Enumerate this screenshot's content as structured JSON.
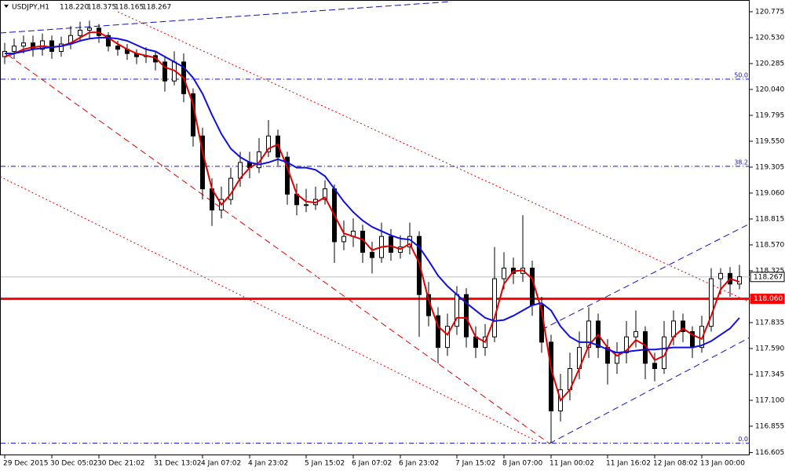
{
  "chart_data": {
    "type": "candlestick",
    "header": {
      "symbol": "USDJPY,H1",
      "quote": [
        "118.220",
        "118.375",
        "118.165",
        "118.267"
      ]
    },
    "categories": [
      "29 Dec 2015",
      null,
      null,
      null,
      null,
      "30 Dec 05:02",
      null,
      null,
      null,
      null,
      "30 Dec 21:02",
      null,
      null,
      null,
      null,
      null,
      "31 Dec 13:02",
      null,
      null,
      null,
      null,
      "4 Jan 07:02",
      null,
      null,
      null,
      null,
      "4 Jan 23:02",
      null,
      null,
      null,
      null,
      null,
      "5 Jan 15:02",
      null,
      null,
      null,
      null,
      "6 Jan 07:02",
      null,
      null,
      null,
      null,
      "6 Jan 23:02",
      null,
      null,
      null,
      null,
      null,
      "7 Jan 15:02",
      null,
      null,
      null,
      null,
      "8 Jan 07:00",
      null,
      null,
      null,
      null,
      "11 Jan 00:02",
      null,
      null,
      null,
      null,
      null,
      "11 Jan 16:02",
      null,
      null,
      null,
      null,
      "12 Jan 08:02",
      null,
      null,
      null,
      null,
      "13 Jan 00:00",
      null,
      null,
      null,
      null
    ],
    "ohlc": [
      [
        120.35,
        120.48,
        120.28,
        120.4
      ],
      [
        120.4,
        120.52,
        120.33,
        120.45
      ],
      [
        120.45,
        120.55,
        120.38,
        120.48
      ],
      [
        120.48,
        120.55,
        120.35,
        120.42
      ],
      [
        120.42,
        120.57,
        120.36,
        120.5
      ],
      [
        120.5,
        120.55,
        120.33,
        120.4
      ],
      [
        120.4,
        120.54,
        120.35,
        120.47
      ],
      [
        120.47,
        120.64,
        120.42,
        120.55
      ],
      [
        120.55,
        120.68,
        120.5,
        120.6
      ],
      [
        120.6,
        120.69,
        120.52,
        120.62
      ],
      [
        120.62,
        120.66,
        120.48,
        120.55
      ],
      [
        120.55,
        120.58,
        120.4,
        120.45
      ],
      [
        120.45,
        120.5,
        120.36,
        120.42
      ],
      [
        120.42,
        120.47,
        120.32,
        120.38
      ],
      [
        120.38,
        120.42,
        120.28,
        120.35
      ],
      [
        120.35,
        120.44,
        120.29,
        120.36
      ],
      [
        120.36,
        120.4,
        120.22,
        120.3
      ],
      [
        120.3,
        120.35,
        120.02,
        120.12
      ],
      [
        120.12,
        120.4,
        120.08,
        120.3
      ],
      [
        120.3,
        120.38,
        119.92,
        120.0
      ],
      [
        120.0,
        120.05,
        119.5,
        119.6
      ],
      [
        119.6,
        119.68,
        119.0,
        119.1
      ],
      [
        119.1,
        119.2,
        118.75,
        118.9
      ],
      [
        118.9,
        119.12,
        118.82,
        119.0
      ],
      [
        119.0,
        119.3,
        118.95,
        119.2
      ],
      [
        119.2,
        119.45,
        119.12,
        119.35
      ],
      [
        119.35,
        119.45,
        119.2,
        119.3
      ],
      [
        119.3,
        119.58,
        119.25,
        119.45
      ],
      [
        119.45,
        119.75,
        119.4,
        119.6
      ],
      [
        119.6,
        119.66,
        119.32,
        119.4
      ],
      [
        119.4,
        119.45,
        118.95,
        119.05
      ],
      [
        119.05,
        119.15,
        118.85,
        118.95
      ],
      [
        118.95,
        119.1,
        118.88,
        118.95
      ],
      [
        118.95,
        119.12,
        118.9,
        119.0
      ],
      [
        119.0,
        119.18,
        118.95,
        119.1
      ],
      [
        119.1,
        119.14,
        118.4,
        118.6
      ],
      [
        118.6,
        118.8,
        118.52,
        118.65
      ],
      [
        118.65,
        118.82,
        118.55,
        118.7
      ],
      [
        118.7,
        118.76,
        118.4,
        118.5
      ],
      [
        118.5,
        118.6,
        118.3,
        118.45
      ],
      [
        118.45,
        118.78,
        118.4,
        118.65
      ],
      [
        118.65,
        118.72,
        118.42,
        118.5
      ],
      [
        118.5,
        118.66,
        118.44,
        118.55
      ],
      [
        118.55,
        118.78,
        118.48,
        118.65
      ],
      [
        118.65,
        118.7,
        117.7,
        118.1
      ],
      [
        118.1,
        118.22,
        117.8,
        117.9
      ],
      [
        117.9,
        117.98,
        117.45,
        117.6
      ],
      [
        117.6,
        117.92,
        117.52,
        117.8
      ],
      [
        117.8,
        118.18,
        117.72,
        118.1
      ],
      [
        118.1,
        118.16,
        117.6,
        117.7
      ],
      [
        117.7,
        117.8,
        117.5,
        117.6
      ],
      [
        117.6,
        117.82,
        117.52,
        117.7
      ],
      [
        117.7,
        118.55,
        117.65,
        118.25
      ],
      [
        118.25,
        118.5,
        118.15,
        118.35
      ],
      [
        118.35,
        118.45,
        118.2,
        118.3
      ],
      [
        118.3,
        118.85,
        118.22,
        118.35
      ],
      [
        118.35,
        118.42,
        117.9,
        118.0
      ],
      [
        118.0,
        118.08,
        117.55,
        117.65
      ],
      [
        117.65,
        117.72,
        116.7,
        117.0
      ],
      [
        117.0,
        117.35,
        116.9,
        117.2
      ],
      [
        117.2,
        117.55,
        117.1,
        117.4
      ],
      [
        117.4,
        117.75,
        117.3,
        117.6
      ],
      [
        117.6,
        117.98,
        117.5,
        117.85
      ],
      [
        117.85,
        117.92,
        117.5,
        117.6
      ],
      [
        117.6,
        117.68,
        117.25,
        117.45
      ],
      [
        117.45,
        117.65,
        117.35,
        117.55
      ],
      [
        117.55,
        117.85,
        117.45,
        117.7
      ],
      [
        117.7,
        117.95,
        117.6,
        117.75
      ],
      [
        117.75,
        117.8,
        117.3,
        117.45
      ],
      [
        117.45,
        117.55,
        117.28,
        117.4
      ],
      [
        117.4,
        117.85,
        117.35,
        117.7
      ],
      [
        117.7,
        117.95,
        117.62,
        117.85
      ],
      [
        117.85,
        117.92,
        117.65,
        117.75
      ],
      [
        117.75,
        117.8,
        117.5,
        117.6
      ],
      [
        117.6,
        117.9,
        117.55,
        117.8
      ],
      [
        117.8,
        118.35,
        117.75,
        118.25
      ],
      [
        118.25,
        118.35,
        118.1,
        118.3
      ],
      [
        118.3,
        118.36,
        118.08,
        118.2
      ],
      [
        118.2,
        118.38,
        118.15,
        118.27
      ]
    ],
    "series": [
      {
        "color": "#e00000",
        "values": [
          120.35,
          120.38,
          120.42,
          120.44,
          120.45,
          120.44,
          120.45,
          120.48,
          120.53,
          120.58,
          120.58,
          120.53,
          120.47,
          120.42,
          120.38,
          120.36,
          120.34,
          120.25,
          120.22,
          120.15,
          119.9,
          119.45,
          119.1,
          118.95,
          119.05,
          119.2,
          119.3,
          119.35,
          119.48,
          119.52,
          119.3,
          119.05,
          118.98,
          118.97,
          119.02,
          118.85,
          118.68,
          118.65,
          118.62,
          118.52,
          118.55,
          118.56,
          118.53,
          118.58,
          118.4,
          118.05,
          117.8,
          117.72,
          117.88,
          117.88,
          117.7,
          117.65,
          117.88,
          118.2,
          118.32,
          118.33,
          118.25,
          117.95,
          117.4,
          117.1,
          117.2,
          117.4,
          117.62,
          117.72,
          117.6,
          117.52,
          117.57,
          117.67,
          117.62,
          117.48,
          117.52,
          117.7,
          117.78,
          117.72,
          117.68,
          117.9,
          118.15,
          118.25,
          118.22
        ]
      },
      {
        "color": "#1010e0",
        "values": [
          120.38,
          120.38,
          120.4,
          120.42,
          120.43,
          120.44,
          120.45,
          120.47,
          120.5,
          120.52,
          120.53,
          120.53,
          120.52,
          120.5,
          120.46,
          120.42,
          120.4,
          120.35,
          120.3,
          120.25,
          120.15,
          120.0,
          119.8,
          119.62,
          119.48,
          119.4,
          119.35,
          119.33,
          119.35,
          119.38,
          119.35,
          119.3,
          119.3,
          119.28,
          119.22,
          119.1,
          118.98,
          118.88,
          118.8,
          118.74,
          118.7,
          118.66,
          118.63,
          118.62,
          118.55,
          118.42,
          118.28,
          118.18,
          118.1,
          118.02,
          117.95,
          117.88,
          117.85,
          117.86,
          117.9,
          117.95,
          118.0,
          118.02,
          117.95,
          117.8,
          117.7,
          117.65,
          117.65,
          117.62,
          117.58,
          117.55,
          117.56,
          117.57,
          117.58,
          117.58,
          117.59,
          117.6,
          117.6,
          117.6,
          117.62,
          117.66,
          117.72,
          117.78,
          117.88
        ]
      }
    ],
    "ylim": [
      116.58,
      120.886
    ],
    "yticks": [
      {
        "value": 120.775,
        "label": "120.775"
      },
      {
        "value": 120.53,
        "label": "120.530"
      },
      {
        "value": 120.285,
        "label": "120.285"
      },
      {
        "value": 120.04,
        "label": "120.040"
      },
      {
        "value": 119.795,
        "label": "119.795"
      },
      {
        "value": 119.55,
        "label": "119.550"
      },
      {
        "value": 119.305,
        "label": "119.305"
      },
      {
        "value": 119.06,
        "label": "119.060"
      },
      {
        "value": 118.815,
        "label": "118.815"
      },
      {
        "value": 118.57,
        "label": "118.570"
      },
      {
        "value": 118.325,
        "label": "118.325"
      },
      {
        "value": 117.835,
        "label": "117.835"
      },
      {
        "value": 117.59,
        "label": "117.590"
      },
      {
        "value": 117.345,
        "label": "117.345"
      },
      {
        "value": 117.1,
        "label": "117.100"
      },
      {
        "value": 116.855,
        "label": "116.855"
      },
      {
        "value": 116.605,
        "label": "116.605"
      }
    ],
    "fib_levels": [
      {
        "value": 120.137,
        "label": "50.0"
      },
      {
        "value": 119.313,
        "label": "38.2"
      },
      {
        "value": 116.694,
        "label": "0.0"
      }
    ],
    "price_lines": [
      {
        "value": 118.267,
        "label": "118.267",
        "color": "#c0c0c0"
      },
      {
        "value": 118.06,
        "label": "118.060",
        "color": "#ff0000"
      }
    ]
  }
}
